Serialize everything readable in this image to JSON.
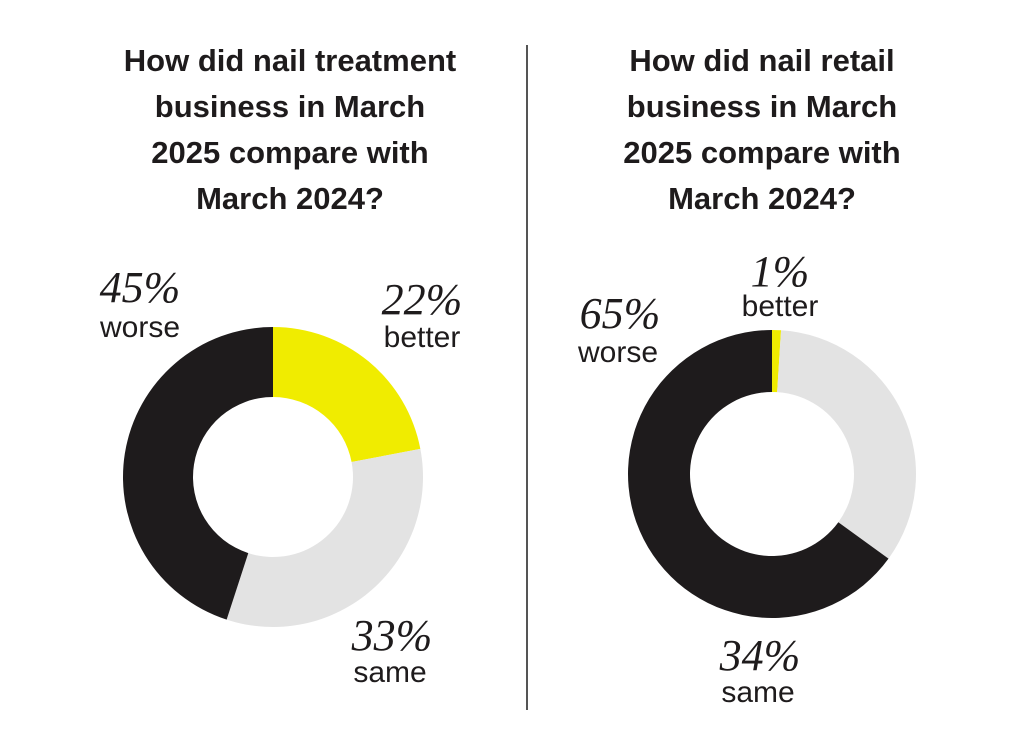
{
  "chart_data": [
    {
      "type": "pie",
      "variant": "donut",
      "title": "How did nail treatment business in March 2025 compare with March 2024?",
      "title_lines": [
        "How did nail treatment",
        "business in March",
        "2025 compare with",
        "March 2024?"
      ],
      "categories": [
        "better",
        "same",
        "worse"
      ],
      "values": [
        22,
        33,
        45
      ],
      "value_labels": [
        "22%",
        "33%",
        "45%"
      ],
      "colors": [
        "#f0ec00",
        "#e3e3e3",
        "#1e1b1c"
      ]
    },
    {
      "type": "pie",
      "variant": "donut",
      "title": "How did nail retail business in March 2025 compare with March 2024?",
      "title_lines": [
        "How did nail retail",
        "business in March",
        "2025 compare with",
        "March 2024?"
      ],
      "categories": [
        "better",
        "same",
        "worse"
      ],
      "values": [
        1,
        34,
        65
      ],
      "value_labels": [
        "1%",
        "34%",
        "65%"
      ],
      "colors": [
        "#f0ec00",
        "#e3e3e3",
        "#1e1b1c"
      ]
    }
  ]
}
